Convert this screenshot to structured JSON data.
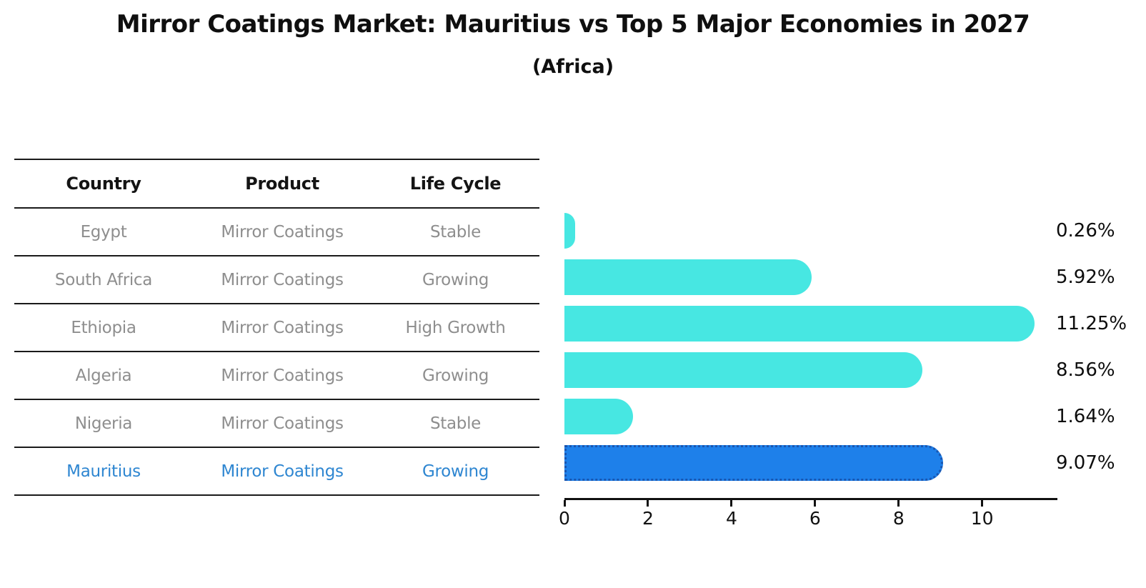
{
  "title": "Mirror Coatings Market: Mauritius vs Top 5 Major Economies in 2027",
  "subtitle": "(Africa)",
  "table": {
    "headers": {
      "country": "Country",
      "product": "Product",
      "life_cycle": "Life Cycle"
    },
    "rows": [
      {
        "country": "Egypt",
        "product": "Mirror Coatings",
        "life_cycle": "Stable"
      },
      {
        "country": "South Africa",
        "product": "Mirror Coatings",
        "life_cycle": "Growing"
      },
      {
        "country": "Ethiopia",
        "product": "Mirror Coatings",
        "life_cycle": "High Growth"
      },
      {
        "country": "Algeria",
        "product": "Mirror Coatings",
        "life_cycle": "Growing"
      },
      {
        "country": "Nigeria",
        "product": "Mirror Coatings",
        "life_cycle": "Stable"
      },
      {
        "country": "Mauritius",
        "product": "Mirror Coatings",
        "life_cycle": "Growing"
      }
    ],
    "highlight_row_index": 5
  },
  "chart_data": {
    "type": "bar",
    "orientation": "horizontal",
    "categories": [
      "Egypt",
      "South Africa",
      "Ethiopia",
      "Algeria",
      "Nigeria",
      "Mauritius"
    ],
    "values": [
      0.26,
      5.92,
      11.25,
      8.56,
      1.64,
      9.07
    ],
    "value_labels": [
      "0.26%",
      "5.92%",
      "11.25%",
      "8.56%",
      "1.64%",
      "9.07%"
    ],
    "highlight_index": 5,
    "xticks": [
      0,
      2,
      4,
      6,
      8,
      10
    ],
    "xtick_labels": [
      "0",
      "2",
      "4",
      "6",
      "8",
      "10"
    ],
    "xlim": [
      0,
      11.8
    ],
    "grid": false,
    "legend": false,
    "title": "Mirror Coatings Market: Mauritius vs Top 5 Major Economies in 2027",
    "subtitle": "(Africa)"
  },
  "colors": {
    "bar": "#47e7e2",
    "highlight_bar": "#1e80ea",
    "highlight_bar_border": "#1a56b0",
    "highlight_text": "#2e86d1",
    "table_text": "#8e8e8e",
    "heading_text": "#111111",
    "axis": "#111111"
  }
}
